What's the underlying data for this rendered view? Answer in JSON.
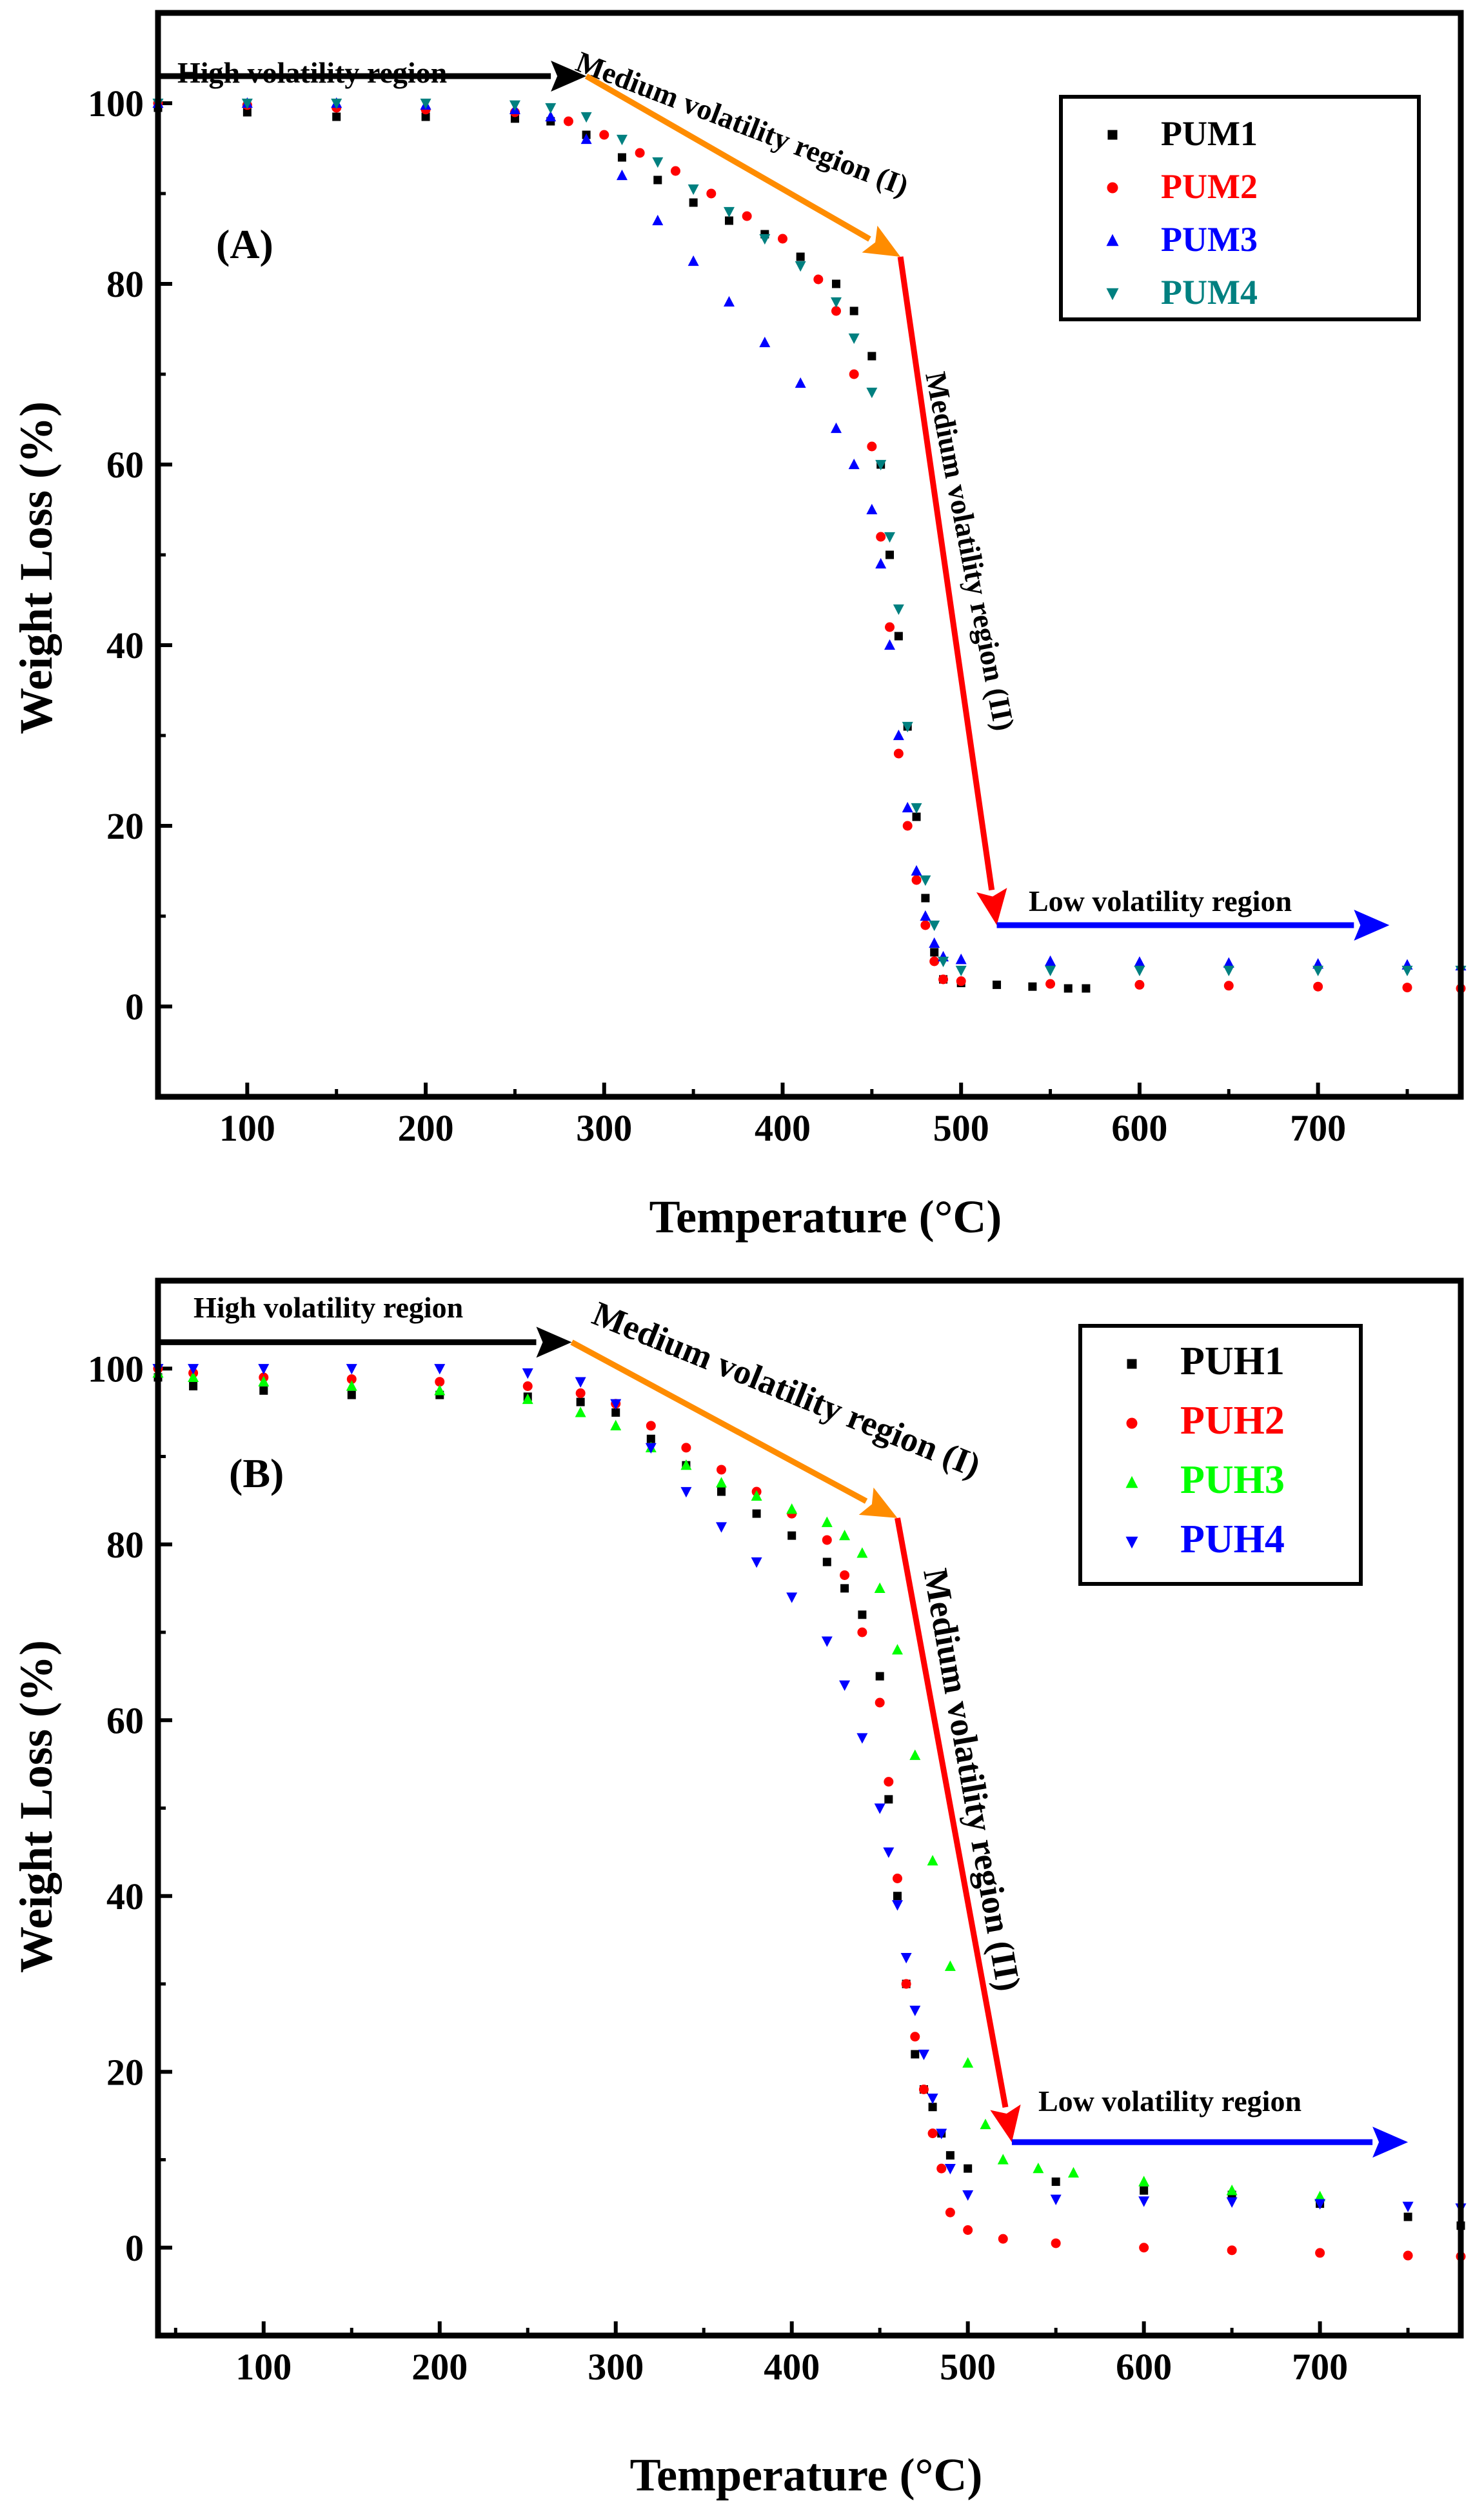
{
  "chart_data": [
    {
      "type": "scatter",
      "panel_label": "(A)",
      "xlabel": "Temperature (°C)",
      "ylabel": "Weight Loss (%)",
      "xlim": [
        50,
        780
      ],
      "ylim": [
        -10,
        110
      ],
      "xticks": [
        100,
        200,
        300,
        400,
        500,
        600,
        700
      ],
      "yticks": [
        0,
        20,
        40,
        60,
        80,
        100
      ],
      "grid": false,
      "legend_position": "top-right",
      "annotations": {
        "high": "High volatility region",
        "medium1": "Medium volatility region (I)",
        "medium2": "Medium volatility region (II)",
        "low": "Low volatility region"
      },
      "arrows": [
        {
          "color": "#000000",
          "from": [
            50,
            103
          ],
          "to": [
            290,
            103
          ]
        },
        {
          "color": "#FF8C00",
          "from": [
            290,
            103
          ],
          "to": [
            466,
            83
          ]
        },
        {
          "color": "#FF0000",
          "from": [
            466,
            83
          ],
          "to": [
            520,
            9
          ]
        },
        {
          "color": "#0000FF",
          "from": [
            520,
            9
          ],
          "to": [
            740,
            9
          ]
        }
      ],
      "series": [
        {
          "name": "PUM1",
          "color": "#000000",
          "marker": "square",
          "x": [
            50,
            100,
            150,
            200,
            250,
            270,
            290,
            310,
            330,
            350,
            370,
            390,
            410,
            430,
            440,
            450,
            455,
            460,
            465,
            470,
            475,
            480,
            485,
            490,
            500,
            520,
            540,
            560,
            570
          ],
          "y": [
            99.5,
            99,
            98.5,
            98.5,
            98.3,
            98,
            96.5,
            94,
            91.5,
            89,
            87,
            85.5,
            83,
            80,
            77,
            72,
            60,
            50,
            41,
            31,
            21,
            12,
            6,
            3,
            2.6,
            2.4,
            2.2,
            2,
            2
          ]
        },
        {
          "name": "PUM2",
          "color": "#FF0000",
          "marker": "circle",
          "x": [
            50,
            100,
            150,
            200,
            250,
            280,
            300,
            320,
            340,
            360,
            380,
            400,
            420,
            430,
            440,
            450,
            455,
            460,
            465,
            470,
            475,
            480,
            485,
            490,
            500,
            550,
            600,
            650,
            700,
            750,
            780
          ],
          "y": [
            100,
            99.8,
            99.5,
            99.3,
            99,
            98,
            96.5,
            94.5,
            92.5,
            90,
            87.5,
            85,
            80.5,
            77,
            70,
            62,
            52,
            42,
            28,
            20,
            14,
            9,
            5,
            3,
            2.8,
            2.5,
            2.4,
            2.3,
            2.2,
            2.1,
            2
          ]
        },
        {
          "name": "PUM3",
          "color": "#0000FF",
          "marker": "triangle-up",
          "x": [
            50,
            100,
            150,
            200,
            250,
            270,
            290,
            310,
            330,
            350,
            370,
            390,
            410,
            430,
            440,
            450,
            455,
            460,
            465,
            470,
            475,
            480,
            485,
            490,
            500,
            550,
            600,
            650,
            700,
            750,
            780
          ],
          "y": [
            100,
            100,
            100,
            99.8,
            99.3,
            98.5,
            96,
            92,
            87,
            82.5,
            78,
            73.5,
            69,
            64,
            60,
            55,
            49,
            40,
            30,
            22,
            15,
            10,
            7,
            5.5,
            5.2,
            5,
            4.9,
            4.8,
            4.7,
            4.6,
            4.5
          ]
        },
        {
          "name": "PUM4",
          "color": "#008080",
          "marker": "triangle-down",
          "x": [
            50,
            100,
            150,
            200,
            250,
            270,
            290,
            310,
            330,
            350,
            370,
            390,
            410,
            430,
            440,
            450,
            455,
            460,
            465,
            470,
            475,
            480,
            485,
            490,
            500,
            550,
            600,
            650,
            700,
            750,
            780
          ],
          "y": [
            100,
            100,
            100,
            100,
            99.8,
            99.5,
            98.5,
            96,
            93.5,
            90.5,
            88,
            85,
            82,
            78,
            74,
            68,
            60,
            52,
            44,
            31,
            22,
            14,
            9,
            5,
            4,
            4,
            4,
            4,
            4,
            4,
            4
          ]
        }
      ]
    },
    {
      "type": "scatter",
      "panel_label": "(B)",
      "xlabel": "Temperature (°C)",
      "ylabel": "Weight Loss (%)",
      "xlim": [
        40,
        780
      ],
      "ylim": [
        -10,
        110
      ],
      "xticks": [
        100,
        200,
        300,
        400,
        500,
        600,
        700
      ],
      "yticks": [
        0,
        20,
        40,
        60,
        80,
        100
      ],
      "grid": false,
      "legend_position": "top-right",
      "annotations": {
        "high": "High volatility region",
        "medium1": "Medium volatility region (I)",
        "medium2": "Medium volatility region (II)",
        "low": "Low volatility region"
      },
      "arrows": [
        {
          "color": "#000000",
          "from": [
            40,
            103
          ],
          "to": [
            275,
            103
          ]
        },
        {
          "color": "#FF8C00",
          "from": [
            275,
            103
          ],
          "to": [
            460,
            83
          ]
        },
        {
          "color": "#FF0000",
          "from": [
            460,
            83
          ],
          "to": [
            525,
            12
          ]
        },
        {
          "color": "#0000FF",
          "from": [
            525,
            12
          ],
          "to": [
            750,
            12
          ]
        }
      ],
      "series": [
        {
          "name": "PUH1",
          "color": "#000000",
          "marker": "square",
          "x": [
            40,
            60,
            100,
            150,
            200,
            250,
            280,
            300,
            320,
            340,
            360,
            380,
            400,
            420,
            430,
            440,
            450,
            455,
            460,
            465,
            470,
            475,
            480,
            485,
            490,
            500,
            550,
            600,
            650,
            700,
            750,
            780
          ],
          "y": [
            99,
            98,
            97.5,
            97,
            97,
            96.8,
            96.2,
            95,
            92,
            89,
            86,
            83.5,
            81,
            78,
            75,
            72,
            65,
            51,
            40,
            30,
            22,
            18,
            16,
            13,
            10.5,
            9,
            7.5,
            6.5,
            6,
            5,
            3.5,
            2.5
          ]
        },
        {
          "name": "PUH2",
          "color": "#FF0000",
          "marker": "circle",
          "x": [
            40,
            60,
            100,
            150,
            200,
            250,
            280,
            300,
            320,
            340,
            360,
            380,
            400,
            420,
            430,
            440,
            450,
            455,
            460,
            465,
            470,
            475,
            480,
            485,
            490,
            500,
            520,
            550,
            600,
            650,
            700,
            750,
            780
          ],
          "y": [
            100,
            99.5,
            99,
            98.8,
            98.5,
            98,
            97.2,
            96,
            93.5,
            91,
            88.5,
            86,
            83.5,
            80.5,
            76.5,
            70,
            62,
            53,
            42,
            30,
            24,
            18,
            13,
            9,
            4,
            2,
            1,
            0.5,
            0,
            -0.3,
            -0.6,
            -0.9,
            -1
          ]
        },
        {
          "name": "PUH3",
          "color": "#00FF00",
          "marker": "triangle-up",
          "x": [
            40,
            60,
            100,
            150,
            200,
            250,
            280,
            300,
            320,
            340,
            360,
            380,
            400,
            420,
            430,
            440,
            450,
            460,
            470,
            480,
            490,
            500,
            510,
            520,
            540,
            560,
            600,
            650,
            700
          ],
          "y": [
            99.5,
            99,
            98.5,
            98,
            97.5,
            96.5,
            95,
            93.5,
            91,
            89,
            87,
            85.5,
            84,
            82.5,
            81,
            79,
            75,
            68,
            56,
            44,
            32,
            21,
            14,
            10,
            9,
            8.5,
            7.5,
            6.5,
            5.8
          ]
        },
        {
          "name": "PUH4",
          "color": "#0000FF",
          "marker": "triangle-down",
          "x": [
            40,
            60,
            100,
            150,
            200,
            250,
            280,
            300,
            320,
            340,
            360,
            380,
            400,
            420,
            430,
            440,
            450,
            455,
            460,
            465,
            470,
            475,
            480,
            485,
            490,
            500,
            550,
            600,
            650,
            700,
            750,
            780
          ],
          "y": [
            100,
            100,
            100,
            100,
            100,
            99.5,
            98.5,
            96,
            91,
            86,
            82,
            78,
            74,
            69,
            64,
            58,
            50,
            45,
            39,
            33,
            27,
            22,
            17,
            13,
            9,
            6,
            5.5,
            5.3,
            5.2,
            5,
            4.7,
            4.5
          ]
        }
      ]
    }
  ]
}
